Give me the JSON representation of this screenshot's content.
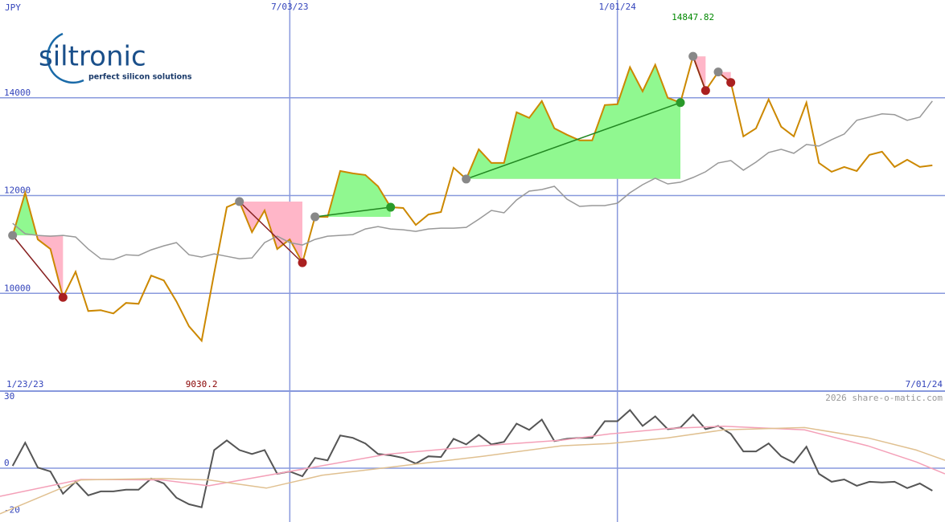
{
  "logo": {
    "name": "siltronic",
    "tagline": "perfect silicon solutions"
  },
  "chart_data": [
    {
      "type": "line",
      "y_label": "JPY",
      "x": [
        "2023-01-30",
        "2023-02-06",
        "2023-02-13",
        "2023-02-20",
        "2023-02-27",
        "2023-03-06",
        "2023-03-13",
        "2023-03-20",
        "2023-03-27",
        "2023-04-03",
        "2023-04-10",
        "2023-04-17",
        "2023-04-24",
        "2023-05-01",
        "2023-05-08",
        "2023-05-15",
        "2023-05-22",
        "2023-05-29",
        "2023-06-05",
        "2023-06-12",
        "2023-06-19",
        "2023-06-26",
        "2023-07-03",
        "2023-07-10",
        "2023-07-17",
        "2023-07-24",
        "2023-07-31",
        "2023-08-07",
        "2023-08-14",
        "2023-08-21",
        "2023-08-28",
        "2023-09-04",
        "2023-09-11",
        "2023-09-18",
        "2023-09-25",
        "2023-10-02",
        "2023-10-09",
        "2023-10-16",
        "2023-10-23",
        "2023-10-30",
        "2023-11-06",
        "2023-11-13",
        "2023-11-20",
        "2023-11-27",
        "2023-12-04",
        "2023-12-11",
        "2023-12-18",
        "2023-12-25",
        "2024-01-01",
        "2024-01-08",
        "2024-01-15",
        "2024-01-22",
        "2024-01-29",
        "2024-02-05",
        "2024-02-12",
        "2024-02-19",
        "2024-02-26",
        "2024-03-04",
        "2024-03-11",
        "2024-03-18",
        "2024-03-25",
        "2024-04-01",
        "2024-04-08",
        "2024-04-15",
        "2024-04-22",
        "2024-04-29",
        "2024-05-06",
        "2024-05-13",
        "2024-05-20",
        "2024-05-27",
        "2024-06-03",
        "2024-06-10",
        "2024-06-17",
        "2024-06-24"
      ],
      "series": [
        {
          "color": "#cc8800",
          "values": [
            11185,
            12058,
            11103,
            10906,
            9918,
            10441,
            9638,
            9655,
            9589,
            9803,
            9786,
            10362,
            10264,
            9836,
            9325,
            9030.2,
            10412,
            11761,
            11877,
            11251,
            11696,
            10906,
            11103,
            10626,
            11564,
            11564,
            12502,
            12453,
            12420,
            12189,
            11761,
            11745,
            11399,
            11613,
            11663,
            12568,
            12338,
            12947,
            12667,
            12667,
            13704,
            13589,
            13934,
            13375,
            13243,
            13128,
            13128,
            13852,
            13868,
            14625,
            14132,
            14675,
            14000,
            13901,
            14847.82,
            14148,
            14527,
            14313,
            13210,
            13375,
            13967,
            13407,
            13210,
            13901,
            12667,
            12486,
            12584,
            12502,
            12831,
            12897,
            12584,
            12733,
            12584,
            12617
          ]
        },
        {
          "color": "#999999",
          "values": [
            11432,
            11218,
            11185,
            11169,
            11185,
            11152,
            10906,
            10708,
            10691,
            10790,
            10774,
            10889,
            10971,
            11037,
            10790,
            10741,
            10807,
            10757,
            10708,
            10724,
            11037,
            11169,
            11037,
            10988,
            11103,
            11169,
            11185,
            11202,
            11317,
            11366,
            11317,
            11301,
            11268,
            11317,
            11333,
            11333,
            11350,
            11515,
            11696,
            11646,
            11910,
            12091,
            12124,
            12189,
            11926,
            11778,
            11794,
            11794,
            11844,
            12058,
            12222,
            12354,
            12239,
            12272,
            12370,
            12486,
            12667,
            12716,
            12519,
            12683,
            12881,
            12947,
            12864,
            13045,
            13012,
            13144,
            13259,
            13539,
            13605,
            13671,
            13654,
            13539,
            13605,
            13934
          ]
        }
      ],
      "xlim": [
        "2023-01-23",
        "2024-07-01"
      ],
      "xlim_labels": [
        "1/23/23",
        "7/01/24"
      ],
      "xticks": [
        {
          "value": "2023-07-03",
          "label": "7/03/23"
        },
        {
          "value": "2024-01-01",
          "label": "1/01/24"
        }
      ],
      "ylim": [
        8000,
        16000
      ],
      "yticks": [
        10000,
        12000,
        14000
      ],
      "grid": true,
      "annotations": {
        "max": 14847.82,
        "min": 9030.2,
        "max_color": "#008800",
        "min_color": "#880000"
      },
      "trends": [
        {
          "from": 0,
          "to": 4,
          "direction": "down"
        },
        {
          "from": 18,
          "to": 23,
          "direction": "down"
        },
        {
          "from": 24,
          "to": 30,
          "direction": "up"
        },
        {
          "from": 36,
          "to": 53,
          "direction": "up"
        },
        {
          "from": 54,
          "to": 55,
          "direction": "down"
        },
        {
          "from": 56,
          "to": 57,
          "direction": "down"
        }
      ],
      "trend_colors": {
        "up": "#228822",
        "down": "#882222",
        "up_fill": "#90f890",
        "down_fill": "#ffb6c8",
        "up_dot": "#2a9a2a",
        "down_dot": "#aa2020",
        "start_dot": "#888888"
      }
    },
    {
      "type": "line",
      "credit": "2026 share-o-matic.com",
      "x": [
        "2023-01-30",
        "2023-02-06",
        "2023-02-13",
        "2023-02-20",
        "2023-02-27",
        "2023-03-06",
        "2023-03-13",
        "2023-03-20",
        "2023-03-27",
        "2023-04-03",
        "2023-04-10",
        "2023-04-17",
        "2023-04-24",
        "2023-05-01",
        "2023-05-08",
        "2023-05-15",
        "2023-05-22",
        "2023-05-29",
        "2023-06-05",
        "2023-06-12",
        "2023-06-19",
        "2023-06-26",
        "2023-07-03",
        "2023-07-10",
        "2023-07-17",
        "2023-07-24",
        "2023-07-31",
        "2023-08-07",
        "2023-08-14",
        "2023-08-21",
        "2023-08-28",
        "2023-09-04",
        "2023-09-11",
        "2023-09-18",
        "2023-09-25",
        "2023-10-02",
        "2023-10-09",
        "2023-10-16",
        "2023-10-23",
        "2023-10-30",
        "2023-11-06",
        "2023-11-13",
        "2023-11-20",
        "2023-11-27",
        "2023-12-04",
        "2023-12-11",
        "2023-12-18",
        "2023-12-25",
        "2024-01-01",
        "2024-01-08",
        "2024-01-15",
        "2024-01-22",
        "2024-01-29",
        "2024-02-05",
        "2024-02-12",
        "2024-02-19",
        "2024-02-26",
        "2024-03-04",
        "2024-03-11",
        "2024-03-18",
        "2024-03-25",
        "2024-04-01",
        "2024-04-08",
        "2024-04-15",
        "2024-04-22",
        "2024-04-29",
        "2024-05-06",
        "2024-05-13",
        "2024-05-20",
        "2024-05-27",
        "2024-06-03",
        "2024-06-10",
        "2024-06-17",
        "2024-06-24"
      ],
      "series": [
        {
          "color": "#555555",
          "values": [
            1.0,
            10.9,
            0.3,
            -1.4,
            -10.9,
            -5.8,
            -11.6,
            -9.9,
            -9.9,
            -9.2,
            -9.2,
            -4.4,
            -6.5,
            -12.6,
            -15.4,
            -16.7,
            7.8,
            11.9,
            7.8,
            6.1,
            7.8,
            -2.4,
            -1.4,
            -3.4,
            4.4,
            3.4,
            14.0,
            13.0,
            10.6,
            6.1,
            5.5,
            4.4,
            2.0,
            5.1,
            4.8,
            12.6,
            10.2,
            14.3,
            10.2,
            11.3,
            19.1,
            16.4,
            20.8,
            11.6,
            12.6,
            13.0,
            13.0,
            20.1,
            20.1,
            24.9,
            18.1,
            22.2,
            16.7,
            17.4,
            22.9,
            16.7,
            18.1,
            14.7,
            7.2,
            7.2,
            10.6,
            5.1,
            2.4,
            9.2,
            -2.4,
            -5.8,
            -4.8,
            -7.5,
            -5.8,
            -6.1,
            -5.8,
            -8.5,
            -6.5,
            -9.6
          ]
        },
        {
          "color": "#f4a0b8",
          "x": [
            "2023-01-23",
            "2023-03-09",
            "2023-04-23",
            "2023-05-19",
            "2023-08-26",
            "2023-10-18",
            "2023-12-01",
            "2023-12-28",
            "2024-01-29",
            "2024-02-29",
            "2024-04-14",
            "2024-05-19",
            "2024-06-15",
            "2024-07-01"
          ],
          "values": [
            -12,
            -4.8,
            -5,
            -7.5,
            6,
            9.6,
            12,
            14.7,
            17,
            18,
            16.4,
            9.6,
            2.7,
            -2.4
          ]
        },
        {
          "color": "#e0c090",
          "x": [
            "2023-01-23",
            "2023-03-09",
            "2023-04-23",
            "2023-05-19",
            "2023-06-20",
            "2023-07-21",
            "2023-09-03",
            "2023-10-18",
            "2023-12-01",
            "2023-12-28",
            "2024-01-29",
            "2024-02-29",
            "2024-04-14",
            "2024-05-19",
            "2024-06-15",
            "2024-07-01"
          ],
          "values": [
            -19.5,
            -5,
            -4.4,
            -5,
            -8.5,
            -3,
            1,
            5.1,
            9.6,
            10.6,
            13,
            16.4,
            17.4,
            13,
            7.8,
            3.4
          ]
        }
      ],
      "ylim": [
        -23,
        33
      ],
      "yticks": [
        30,
        0,
        -20
      ],
      "grid_values": [
        0
      ]
    }
  ]
}
